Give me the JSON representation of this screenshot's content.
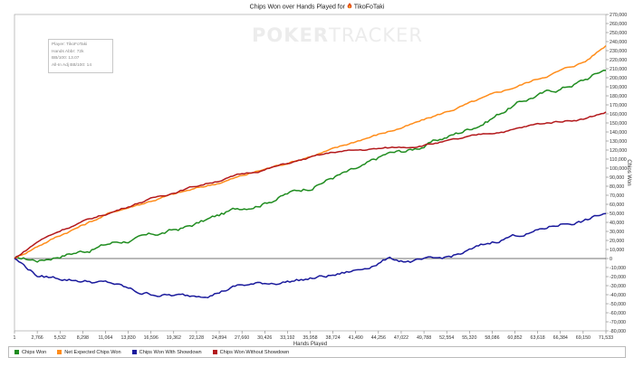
{
  "header": {
    "title": "Chips Won over Hands Played for",
    "player": "TikoFoTaki"
  },
  "watermark": {
    "bold": "POKER",
    "thin": "TRACKER"
  },
  "infobox": {
    "player": "Player: TikoFoTaki",
    "hands": "Hands Abbr: 72k",
    "bb100": "BB/100: 13.07",
    "allin": "All-In Adj BB/100: 14"
  },
  "colors": {
    "chips_won": "#1f8c1f",
    "expected": "#ff8c1a",
    "showdown": "#1a1a9c",
    "no_showdown": "#b3191c"
  },
  "legend": [
    {
      "label": "Chips Won",
      "color": "#1f8c1f"
    },
    {
      "label": "Net Expected Chips Won",
      "color": "#ff8c1a"
    },
    {
      "label": "Chips Won With Showdown",
      "color": "#1a1a9c"
    },
    {
      "label": "Chips Won Without Showdown",
      "color": "#b3191c"
    }
  ],
  "chart_data": {
    "type": "line",
    "title": "Chips Won over Hands Played for TikoFoTaki",
    "xlabel": "Hands Played",
    "ylabel": "Chips Won",
    "xlim": [
      1,
      71533
    ],
    "ylim": [
      -80000,
      270000
    ],
    "x_ticks": [
      "1",
      "2,766",
      "5,532",
      "8,298",
      "11,064",
      "13,830",
      "16,596",
      "19,362",
      "22,128",
      "24,894",
      "27,660",
      "30,426",
      "33,192",
      "35,958",
      "38,724",
      "41,490",
      "44,256",
      "47,022",
      "49,788",
      "52,554",
      "55,320",
      "58,086",
      "60,852",
      "63,618",
      "66,384",
      "69,150",
      "71,533"
    ],
    "y_ticks": [
      270000,
      260000,
      250000,
      240000,
      230000,
      220000,
      210000,
      200000,
      190000,
      180000,
      170000,
      160000,
      150000,
      140000,
      130000,
      120000,
      110000,
      100000,
      90000,
      80000,
      70000,
      60000,
      50000,
      40000,
      30000,
      20000,
      10000,
      0,
      -10000,
      -20000,
      -30000,
      -40000,
      -50000,
      -60000,
      -70000,
      -80000
    ],
    "grid": false,
    "legend_position": "bottom",
    "x": [
      1,
      3000,
      6000,
      9000,
      12000,
      15000,
      18000,
      21000,
      24000,
      27000,
      30000,
      33000,
      36000,
      39000,
      42000,
      45000,
      48000,
      51000,
      54000,
      57000,
      60000,
      63000,
      66000,
      69000,
      71533
    ],
    "series": [
      {
        "name": "Chips Won",
        "color": "#1f8c1f",
        "values": [
          0,
          -2000,
          5000,
          10000,
          18000,
          22000,
          28000,
          35000,
          45000,
          55000,
          62000,
          72000,
          80000,
          92000,
          100000,
          115000,
          120000,
          130000,
          140000,
          152000,
          168000,
          180000,
          188000,
          198000,
          210000
        ]
      },
      {
        "name": "Net Expected Chips Won",
        "color": "#ff8c1a",
        "values": [
          0,
          15000,
          28000,
          40000,
          52000,
          60000,
          68000,
          75000,
          82000,
          90000,
          98000,
          106000,
          114000,
          122000,
          132000,
          140000,
          148000,
          158000,
          168000,
          178000,
          188000,
          198000,
          208000,
          218000,
          236000
        ]
      },
      {
        "name": "Chips Won With Showdown",
        "color": "#1a1a9c",
        "values": [
          0,
          -20000,
          -22000,
          -25000,
          -28000,
          -38000,
          -40000,
          -42000,
          -38000,
          -30000,
          -28000,
          -25000,
          -22000,
          -18000,
          -12000,
          0,
          -3000,
          -2000,
          5000,
          15000,
          25000,
          30000,
          38000,
          42000,
          50000
        ]
      },
      {
        "name": "Chips Won Without Showdown",
        "color": "#b3191c",
        "values": [
          0,
          20000,
          33000,
          43000,
          52000,
          62000,
          70000,
          78000,
          85000,
          92000,
          98000,
          105000,
          112000,
          118000,
          120000,
          122000,
          124000,
          128000,
          132000,
          138000,
          142000,
          148000,
          152000,
          155000,
          162000
        ]
      }
    ]
  }
}
